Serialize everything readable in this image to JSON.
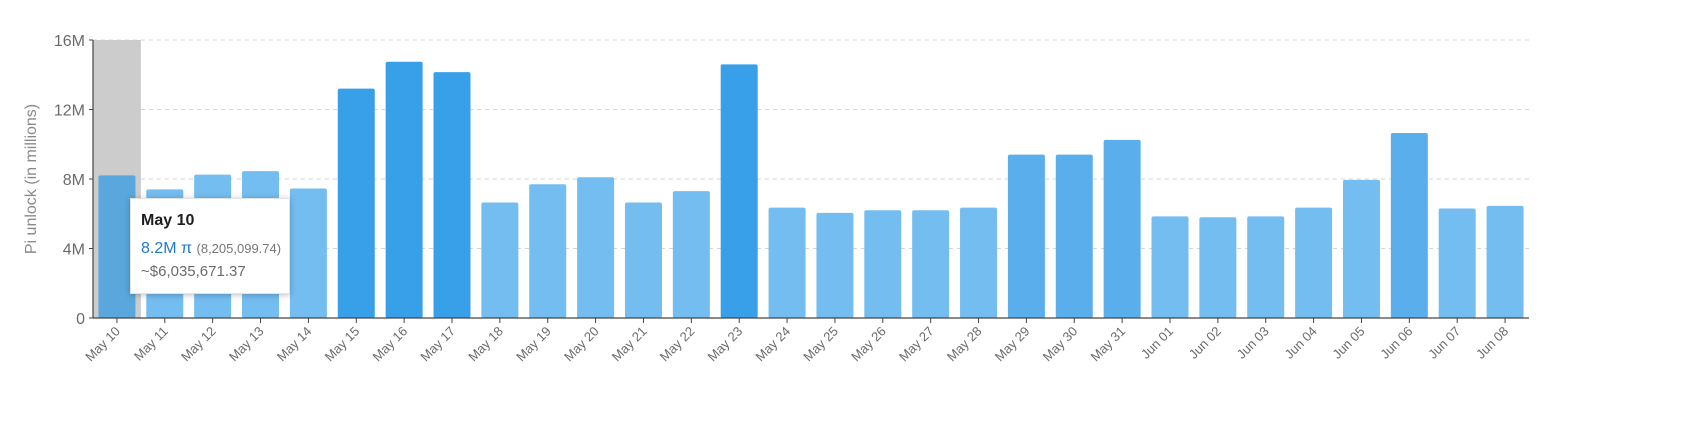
{
  "chart_data": {
    "type": "bar",
    "title": "",
    "xlabel": "",
    "ylabel": "Pi unlock (in millions)",
    "ylim": [
      0,
      16
    ],
    "yticks": [
      0,
      4,
      8,
      12,
      16
    ],
    "ytick_labels": [
      "0",
      "4M",
      "8M",
      "12M",
      "16M"
    ],
    "grid": true,
    "categories": [
      "May 10",
      "May 11",
      "May 12",
      "May 13",
      "May 14",
      "May 15",
      "May 16",
      "May 17",
      "May 18",
      "May 19",
      "May 20",
      "May 21",
      "May 22",
      "May 23",
      "May 24",
      "May 25",
      "May 26",
      "May 27",
      "May 28",
      "May 29",
      "May 30",
      "May 31",
      "Jun 01",
      "Jun 02",
      "Jun 03",
      "Jun 04",
      "Jun 05",
      "Jun 06",
      "Jun 07",
      "Jun 08"
    ],
    "values": [
      8.21,
      7.4,
      8.25,
      8.45,
      7.45,
      13.2,
      14.75,
      14.15,
      6.65,
      7.7,
      8.1,
      6.65,
      7.3,
      14.6,
      6.35,
      6.05,
      6.2,
      6.2,
      6.35,
      9.4,
      9.4,
      10.25,
      5.85,
      5.8,
      5.85,
      6.35,
      7.95,
      10.65,
      6.3,
      6.45
    ],
    "colors": {
      "bar_light": "#74bdf0",
      "bar_mid": "#5aaeec",
      "bar_dark": "#37a0e8",
      "bar_hovered": "#5aa7dd",
      "hover_band": "#cccccc",
      "grid": "#d4d4d4",
      "axis": "#444444"
    },
    "hovered_index": 0,
    "tooltip": {
      "title": "May 10",
      "pi_value": "8.2M π",
      "pi_exact": "(8,205,099.74)",
      "usd_value": "~$6,035,671.37"
    }
  }
}
